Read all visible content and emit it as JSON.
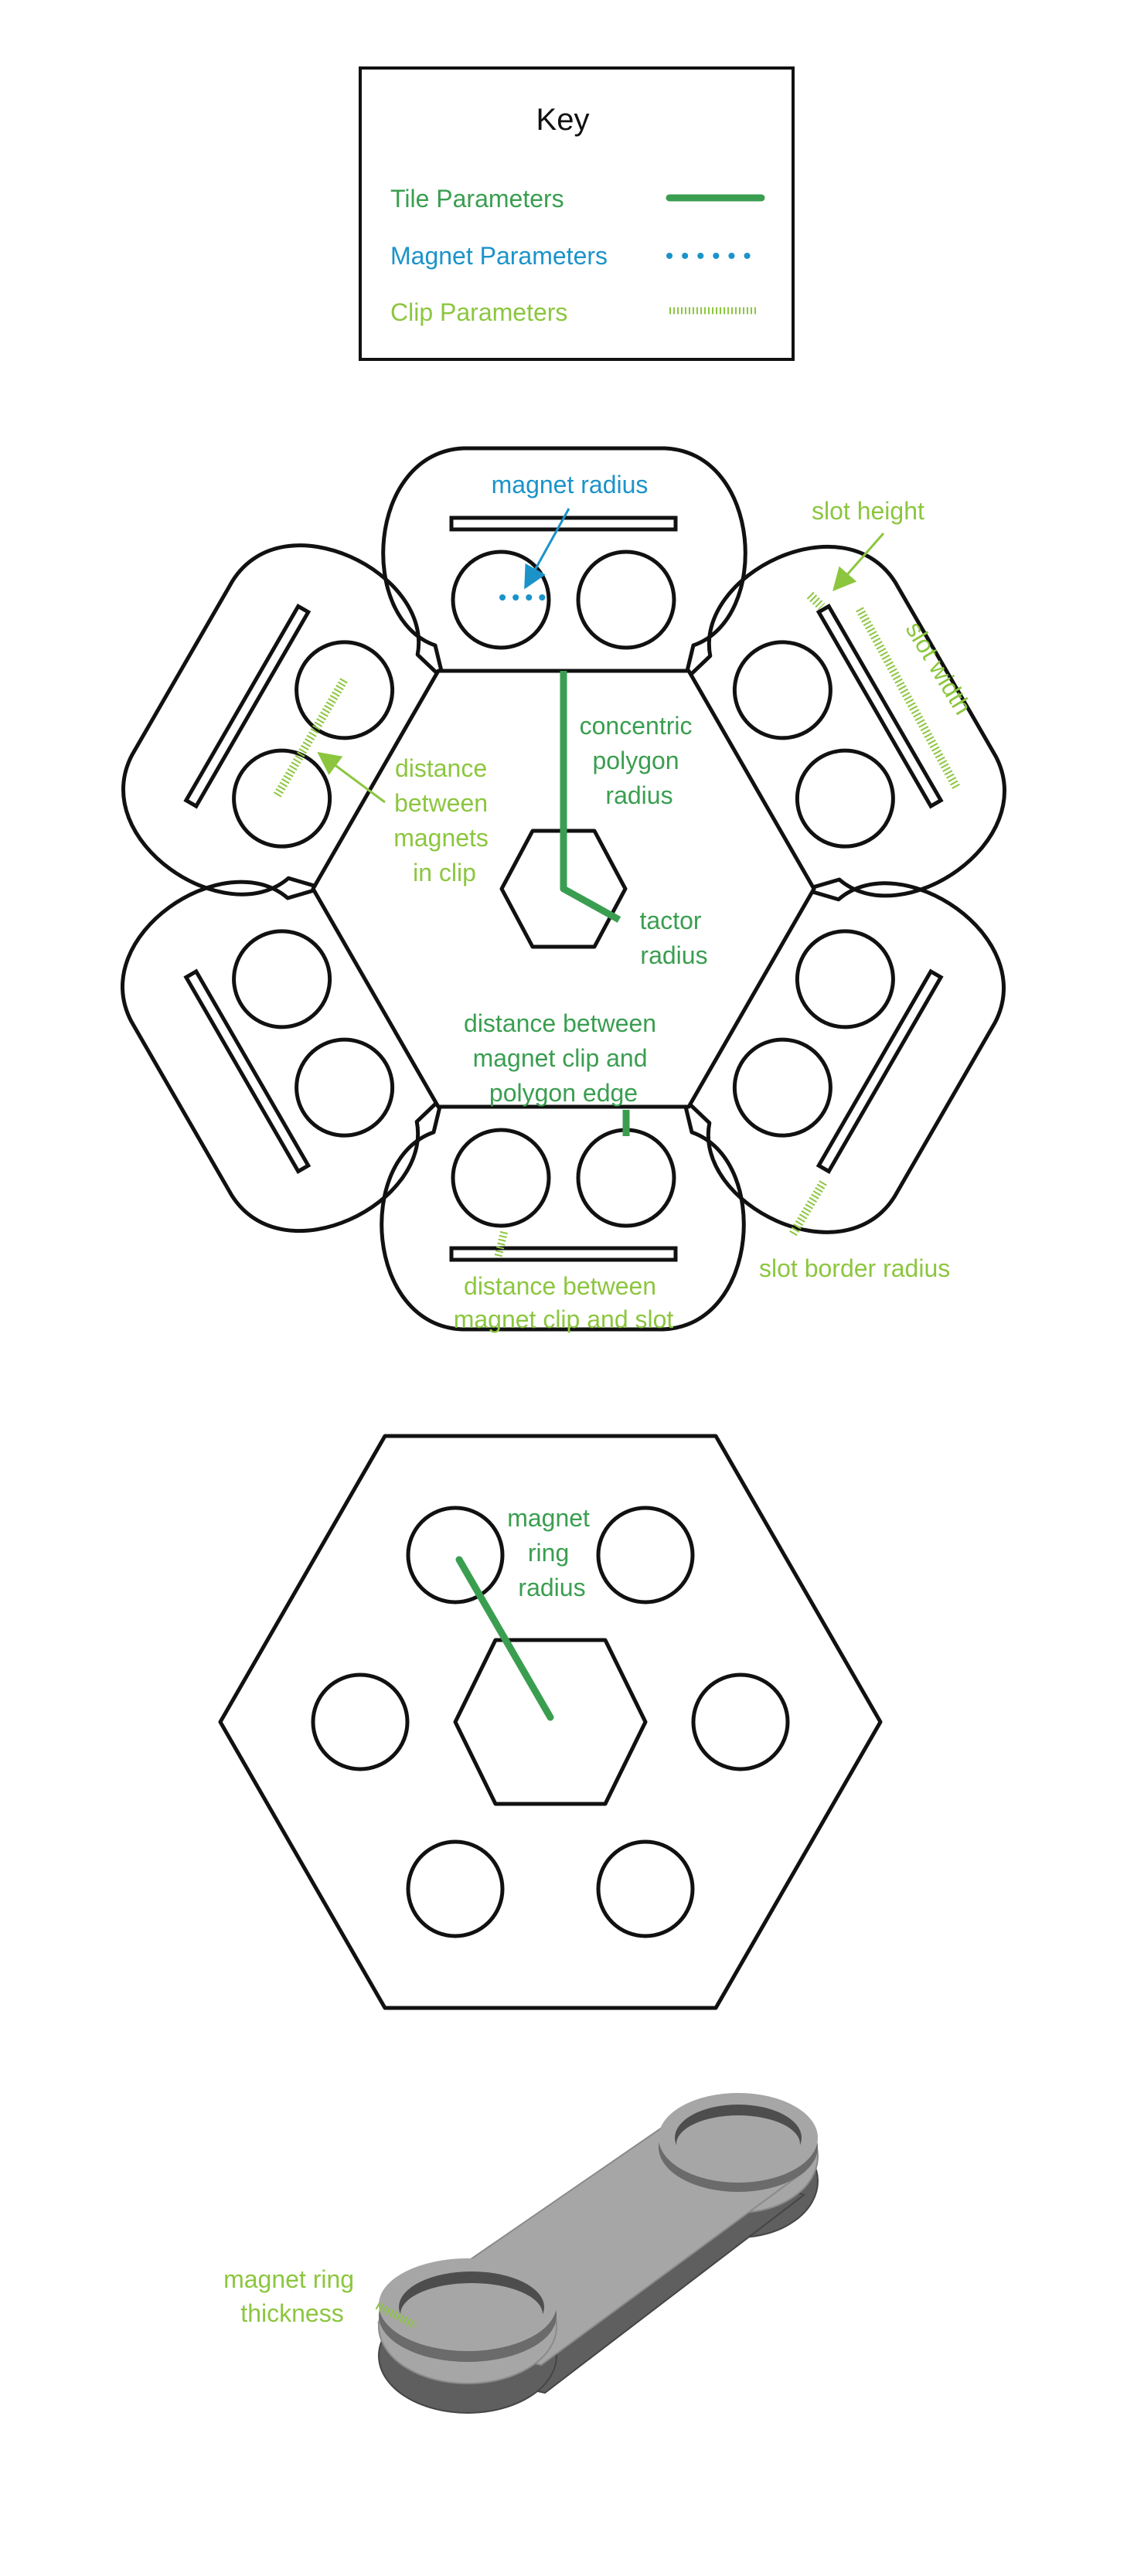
{
  "colors": {
    "tile": "#3a9e50",
    "magnet": "#1b93c9",
    "clip": "#8cc63f",
    "outline": "#111111",
    "body_light": "#a6a6a6",
    "body_dark": "#5f5f5f"
  },
  "key": {
    "title": "Key",
    "tile": "Tile Parameters",
    "magnet": "Magnet Parameters",
    "clip": "Clip Parameters"
  },
  "labels": {
    "magnet_radius": "magnet radius",
    "slot_height": "slot height",
    "slot_width": "slot width",
    "concentric_polygon_radius": [
      "concentric",
      "polygon",
      "radius"
    ],
    "distance_between_magnets_in_clip": [
      "distance",
      "between",
      "magnets",
      "in clip"
    ],
    "tactor_radius": [
      "tactor",
      "radius"
    ],
    "distance_clip_polygon_edge": [
      "distance between",
      "magnet clip and",
      "polygon edge"
    ],
    "slot_border_radius": "slot border radius",
    "distance_clip_slot": [
      "distance between",
      "magnet clip and slot"
    ],
    "magnet_ring_radius": [
      "magnet",
      "ring",
      "radius"
    ],
    "magnet_ring_thickness": [
      "magnet ring",
      "thickness"
    ]
  }
}
